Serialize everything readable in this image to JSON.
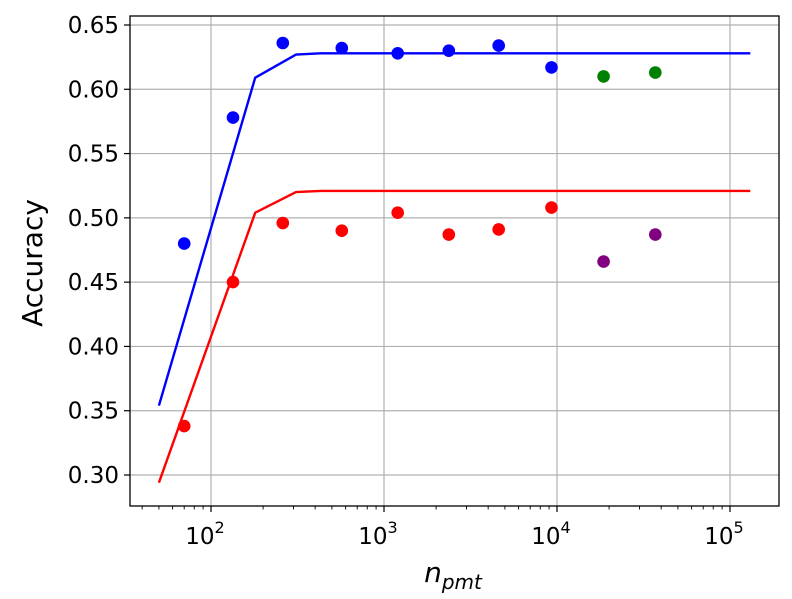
{
  "chart_data": {
    "type": "scatter",
    "title": "",
    "xlabel": "n_pmt",
    "xlabel_main": "n",
    "xlabel_sub": "pmt",
    "ylabel": "Accuracy",
    "xscale": "log",
    "xlim": [
      35,
      190000
    ],
    "ylim": [
      0.278,
      0.654
    ],
    "grid": true,
    "legend": null,
    "x_ticks": [
      {
        "value": 100,
        "base": "10",
        "exp": "2"
      },
      {
        "value": 1000,
        "base": "10",
        "exp": "3"
      },
      {
        "value": 10000,
        "base": "10",
        "exp": "4"
      },
      {
        "value": 100000,
        "base": "10",
        "exp": "5"
      }
    ],
    "y_ticks": [
      "0.30",
      "0.35",
      "0.40",
      "0.45",
      "0.50",
      "0.55",
      "0.60",
      "0.65"
    ],
    "series": [
      {
        "name": "blue points",
        "kind": "scatter",
        "color": "#0000ff",
        "x": [
          70,
          134,
          260,
          570,
          1200,
          2370,
          4600,
          9300
        ],
        "y": [
          0.48,
          0.578,
          0.636,
          0.632,
          0.628,
          0.63,
          0.634,
          0.617
        ]
      },
      {
        "name": "green points",
        "kind": "scatter",
        "color": "#008000",
        "x": [
          18600,
          37000
        ],
        "y": [
          0.61,
          0.613
        ]
      },
      {
        "name": "red points",
        "kind": "scatter",
        "color": "#ff0000",
        "x": [
          70,
          134,
          260,
          570,
          1200,
          2370,
          4600,
          9300
        ],
        "y": [
          0.338,
          0.45,
          0.496,
          0.49,
          0.504,
          0.487,
          0.491,
          0.508
        ]
      },
      {
        "name": "purple points",
        "kind": "scatter",
        "color": "#800080",
        "x": [
          18600,
          37000
        ],
        "y": [
          0.466,
          0.487
        ]
      },
      {
        "name": "blue fit",
        "kind": "line",
        "color": "#0000ff",
        "x": [
          50,
          180,
          310,
          430,
          131000
        ],
        "y": [
          0.354,
          0.609,
          0.627,
          0.628,
          0.628
        ]
      },
      {
        "name": "red fit",
        "kind": "line",
        "color": "#ff0000",
        "x": [
          50,
          180,
          310,
          430,
          131000
        ],
        "y": [
          0.294,
          0.504,
          0.52,
          0.521,
          0.521
        ]
      }
    ]
  }
}
